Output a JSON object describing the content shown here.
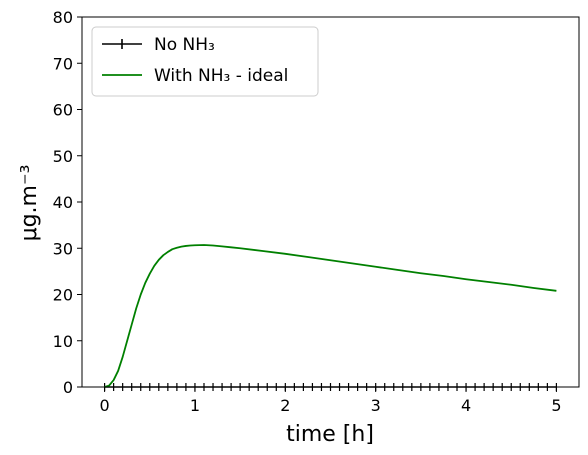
{
  "chart_data": {
    "type": "line",
    "xlabel": "time [h]",
    "ylabel": "μg.m⁻³",
    "xlim": [
      -0.25,
      5.25
    ],
    "ylim": [
      0,
      80
    ],
    "xticks": [
      0,
      1,
      2,
      3,
      4,
      5
    ],
    "yticks": [
      0,
      10,
      20,
      30,
      40,
      50,
      60,
      70,
      80
    ],
    "grid": false,
    "legend": {
      "placement": "top-left"
    },
    "series": [
      {
        "name": "No NH₃",
        "color": "#000000",
        "marker": "plus",
        "x": [
          0,
          0.1,
          0.2,
          0.3,
          0.4,
          0.5,
          0.6,
          0.7,
          0.8,
          0.9,
          1.0,
          1.1,
          1.2,
          1.3,
          1.4,
          1.5,
          1.6,
          1.7,
          1.8,
          1.9,
          2.0,
          2.1,
          2.2,
          2.3,
          2.4,
          2.5,
          2.6,
          2.7,
          2.8,
          2.9,
          3.0,
          3.1,
          3.2,
          3.3,
          3.4,
          3.5,
          3.6,
          3.7,
          3.8,
          3.9,
          4.0,
          4.1,
          4.2,
          4.3,
          4.4,
          4.5,
          4.6,
          4.7,
          4.8,
          4.9,
          5.0
        ],
        "y": [
          0,
          0,
          0,
          0,
          0,
          0,
          0,
          0,
          0,
          0,
          0,
          0,
          0,
          0,
          0,
          0,
          0,
          0,
          0,
          0,
          0,
          0,
          0,
          0,
          0,
          0,
          0,
          0,
          0,
          0,
          0,
          0,
          0,
          0,
          0,
          0,
          0,
          0,
          0,
          0,
          0,
          0,
          0,
          0,
          0,
          0,
          0,
          0,
          0,
          0,
          0
        ]
      },
      {
        "name": "With NH₃ - ideal",
        "color": "#008000",
        "marker": "none",
        "x": [
          0,
          0.05,
          0.1,
          0.15,
          0.2,
          0.25,
          0.3,
          0.35,
          0.4,
          0.45,
          0.5,
          0.55,
          0.6,
          0.65,
          0.7,
          0.75,
          0.8,
          0.85,
          0.9,
          0.95,
          1.0,
          1.1,
          1.2,
          1.3,
          1.4,
          1.5,
          1.75,
          2.0,
          2.25,
          2.5,
          2.75,
          3.0,
          3.25,
          3.5,
          3.75,
          4.0,
          4.25,
          4.5,
          4.75,
          5.0
        ],
        "y": [
          0,
          0.3,
          1.5,
          3.5,
          6.5,
          10,
          13.5,
          17,
          20,
          22.5,
          24.5,
          26.2,
          27.5,
          28.5,
          29.2,
          29.8,
          30.1,
          30.35,
          30.5,
          30.6,
          30.65,
          30.7,
          30.6,
          30.4,
          30.2,
          30.0,
          29.4,
          28.8,
          28.1,
          27.4,
          26.7,
          26.0,
          25.3,
          24.6,
          24.0,
          23.3,
          22.7,
          22.1,
          21.4,
          20.8
        ]
      }
    ]
  }
}
